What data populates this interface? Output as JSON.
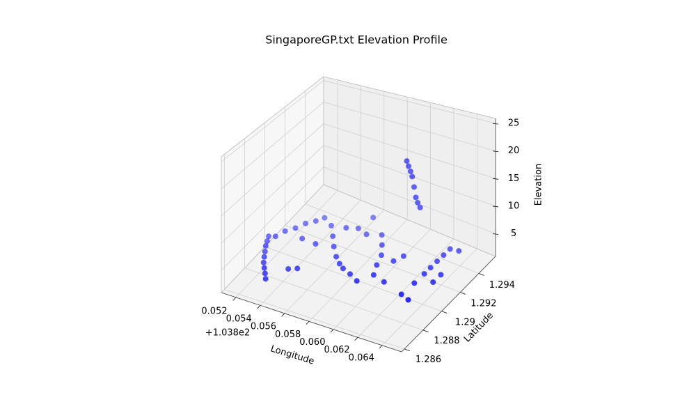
{
  "chart_data": {
    "type": "scatter3d",
    "title": "SingaporeGP.txt Elevation Profile",
    "xlabel": "Longitude",
    "ylabel": "Latitude",
    "zlabel": "Elevation",
    "x_offset": "+1.038e2",
    "color": "#0000ff",
    "grid": true,
    "xlim": [
      103.8508,
      103.8656
    ],
    "ylim": [
      1.2857,
      1.2958
    ],
    "zlim": [
      0.9,
      25.9
    ],
    "xticks": [
      {
        "value": 103.852,
        "label": "0.052"
      },
      {
        "value": 103.854,
        "label": "0.054"
      },
      {
        "value": 103.856,
        "label": "0.056"
      },
      {
        "value": 103.858,
        "label": "0.058"
      },
      {
        "value": 103.86,
        "label": "0.060"
      },
      {
        "value": 103.862,
        "label": "0.062"
      },
      {
        "value": 103.864,
        "label": "0.064"
      }
    ],
    "yticks": [
      1.286,
      1.288,
      1.29,
      1.292,
      1.294
    ],
    "zticks": [
      5,
      10,
      15,
      20,
      25
    ],
    "x": [
      103.85104,
      103.85124,
      103.85144,
      103.85173,
      103.85201,
      103.85231,
      103.85268,
      103.85305,
      103.85342,
      103.85147,
      103.85175,
      103.85221,
      103.85256,
      103.85305,
      103.8534,
      103.85429,
      103.85502,
      103.85571,
      103.85647,
      103.8571,
      103.85761,
      103.85838,
      103.85922,
      103.85534,
      103.85613,
      103.85699,
      103.85639,
      103.85798,
      103.8586,
      103.85918,
      103.85949,
      103.8599,
      103.86097,
      103.86029,
      103.86061,
      103.8628,
      103.86356,
      103.86292,
      103.86297,
      103.86298,
      103.863,
      103.86302,
      103.86305,
      103.86371,
      103.86405,
      103.86402,
      103.85423,
      103.85477,
      103.85326,
      103.85441,
      103.86046,
      103.86057,
      103.86069,
      103.86079,
      103.86091,
      103.86101,
      103.86113,
      103.86125
    ],
    "y": [
      1.29009,
      1.28971,
      1.28933,
      1.28891,
      1.2885,
      1.28808,
      1.2877,
      1.28733,
      1.28694,
      1.29026,
      1.29088,
      1.29137,
      1.29196,
      1.29241,
      1.29287,
      1.29249,
      1.29177,
      1.29105,
      1.29037,
      1.28994,
      1.28968,
      1.28945,
      1.28911,
      1.29274,
      1.29303,
      1.29283,
      1.29423,
      1.29321,
      1.29247,
      1.2917,
      1.29084,
      1.29001,
      1.28976,
      1.2916,
      1.29225,
      1.28928,
      1.28904,
      1.2905,
      1.29149,
      1.29214,
      1.29281,
      1.29347,
      1.29412,
      1.29423,
      1.29189,
      1.2911,
      1.28823,
      1.28849,
      1.29079,
      1.29076,
      1.29277,
      1.29282,
      1.29288,
      1.29293,
      1.29298,
      1.29304,
      1.29309,
      1.29319
    ],
    "z": [
      3,
      3,
      3,
      3,
      3,
      3,
      3,
      3,
      3,
      3,
      3,
      3,
      3,
      3,
      3,
      3,
      3,
      3,
      3,
      3,
      3,
      3,
      3,
      3,
      3,
      3,
      3,
      3,
      3,
      3,
      3,
      3,
      3,
      3,
      3,
      3,
      3,
      3,
      3,
      3,
      3,
      3,
      3,
      3,
      3,
      3,
      3,
      3,
      3,
      3,
      20,
      19,
      18,
      17,
      15,
      13,
      12,
      11
    ]
  }
}
